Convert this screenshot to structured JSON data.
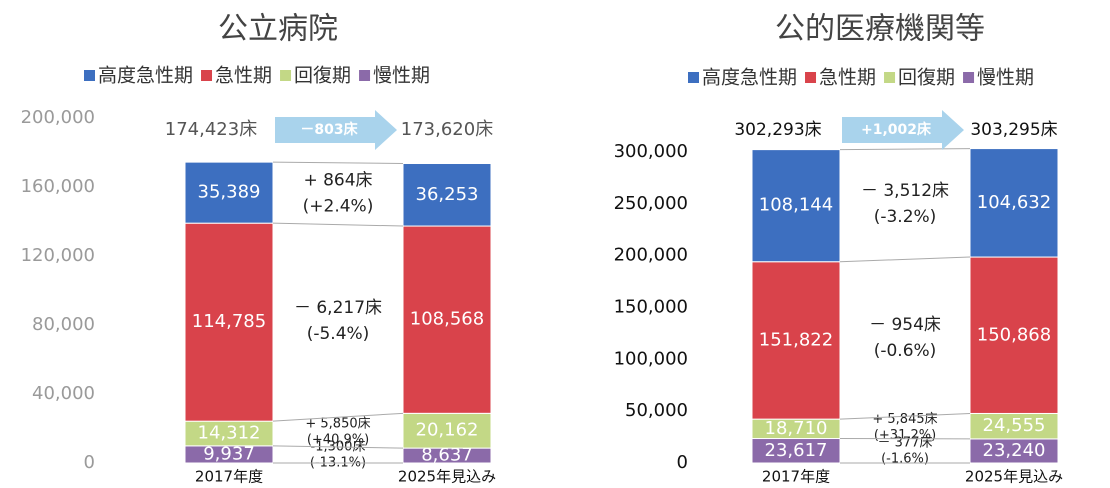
{
  "chart_data": [
    {
      "type": "stacked-bar",
      "title": "公立病院",
      "categories": [
        "2017年度",
        "2025年見込み"
      ],
      "series": [
        {
          "name": "高度急性期",
          "color": "#3d6fc0",
          "values": [
            35389,
            36253
          ],
          "value_labels": [
            "35,389",
            "36,253"
          ],
          "change": [
            "+ 864床",
            "(+2.4%)"
          ]
        },
        {
          "name": "急性期",
          "color": "#d9434b",
          "values": [
            114785,
            108568
          ],
          "value_labels": [
            "114,785",
            "108,568"
          ],
          "change": [
            "－ 6,217床",
            "(-5.4%)"
          ]
        },
        {
          "name": "回復期",
          "color": "#c3d886",
          "values": [
            14312,
            20162
          ],
          "value_labels": [
            "14,312",
            "20,162"
          ],
          "change": [
            "+ 5,850床",
            "(+40.9%)"
          ]
        },
        {
          "name": "慢性期",
          "color": "#8b6aa9",
          "values": [
            9937,
            8637
          ],
          "value_labels": [
            "9,937",
            "8,637"
          ],
          "change": [
            "-1,300床",
            "(-13.1%)"
          ]
        }
      ],
      "total_labels": [
        "174,423床",
        "173,620床"
      ],
      "total_change": "－803床",
      "ylim": [
        0,
        200000
      ],
      "yticks": [
        0,
        {
          "value": 40000,
          "label": "40,000"
        },
        {
          "value": 80000,
          "label": "80,000"
        },
        {
          "value": 120000,
          "label": "120,000"
        },
        {
          "value": 160000,
          "label": "160,000"
        },
        {
          "value": 200000,
          "label": "200,000"
        }
      ],
      "grid": false
    },
    {
      "type": "stacked-bar",
      "title": "公的医療機関等",
      "categories": [
        "2017年度",
        "2025年見込み"
      ],
      "series": [
        {
          "name": "高度急性期",
          "color": "#3d6fc0",
          "values": [
            108144,
            104632
          ],
          "value_labels": [
            "108,144",
            "104,632"
          ],
          "change": [
            "－ 3,512床",
            "(-3.2%)"
          ]
        },
        {
          "name": "急性期",
          "color": "#d9434b",
          "values": [
            151822,
            150868
          ],
          "value_labels": [
            "151,822",
            "150,868"
          ],
          "change": [
            "－ 954床",
            "(-0.6%)"
          ]
        },
        {
          "name": "回復期",
          "color": "#c3d886",
          "values": [
            18710,
            24555
          ],
          "value_labels": [
            "18,710",
            "24,555"
          ],
          "change": [
            "+ 5,845床",
            "(+31.2%)"
          ]
        },
        {
          "name": "慢性期",
          "color": "#8b6aa9",
          "values": [
            23617,
            23240
          ],
          "value_labels": [
            "23,617",
            "23,240"
          ],
          "change": [
            "－ 377床",
            "(-1.6%)"
          ]
        }
      ],
      "total_labels": [
        "302,293床",
        "303,295床"
      ],
      "total_change": "+1,002床",
      "ylim": [
        0,
        300000
      ],
      "yticks": [
        0,
        {
          "value": 50000,
          "label": "50,000"
        },
        {
          "value": 100000,
          "label": "100,000"
        },
        {
          "value": 150000,
          "label": "150,000"
        },
        {
          "value": 200000,
          "label": "200,000"
        },
        {
          "value": 250000,
          "label": "250,000"
        },
        {
          "value": 300000,
          "label": "300,000"
        }
      ],
      "grid": false
    }
  ]
}
